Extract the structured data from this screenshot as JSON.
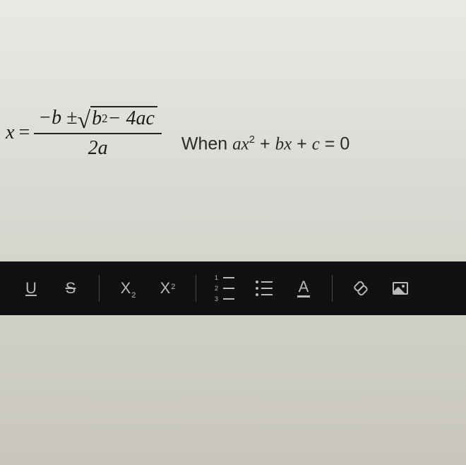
{
  "formula": {
    "lhs_var": "x",
    "eq": "=",
    "numerator_prefix": "−b ±",
    "radicand_b2": "b",
    "radicand_exp": "2",
    "radicand_rest": " − 4ac",
    "denominator": "2a"
  },
  "condition": {
    "prefix": "When ",
    "a": "a",
    "x": "x",
    "exp": "2",
    "plus1": " + ",
    "b": "b",
    "x2": "x",
    "plus2": " + ",
    "c": "c",
    "eq0": " = 0"
  },
  "toolbar": {
    "underline": "U",
    "strike": "S",
    "subscript_x": "X",
    "subscript_s": "2",
    "superscript_x": "X",
    "superscript_s": "2",
    "font": "A",
    "ol1": "1",
    "ol2": "2",
    "ol3": "3"
  },
  "style": {
    "toolbar_bg": "#0f1112",
    "toolbar_fg": "#b8b8b4",
    "text_color": "#1a1a1a"
  }
}
